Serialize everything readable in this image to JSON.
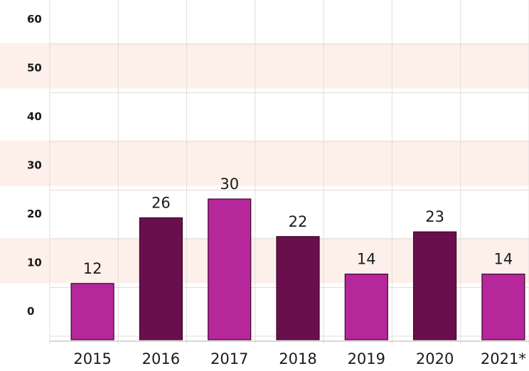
{
  "chart_data": {
    "type": "bar",
    "categories": [
      "2015",
      "2016",
      "2017",
      "2018",
      "2019",
      "2020",
      "2021*"
    ],
    "values": [
      12,
      26,
      30,
      22,
      14,
      23,
      14
    ],
    "data_labels": [
      "12",
      "26",
      "30",
      "22",
      "14",
      "23",
      "14"
    ],
    "y_ticks": [
      "0",
      "10",
      "20",
      "30",
      "40",
      "50",
      "60"
    ],
    "ylim": [
      0,
      60
    ],
    "grid": true,
    "colors": {
      "light_bar": "#b5279a",
      "dark_bar": "#6a0f4d",
      "band": "#fdf0ea",
      "grid": "#e3dcdc",
      "text": "#1a1a1a"
    }
  }
}
